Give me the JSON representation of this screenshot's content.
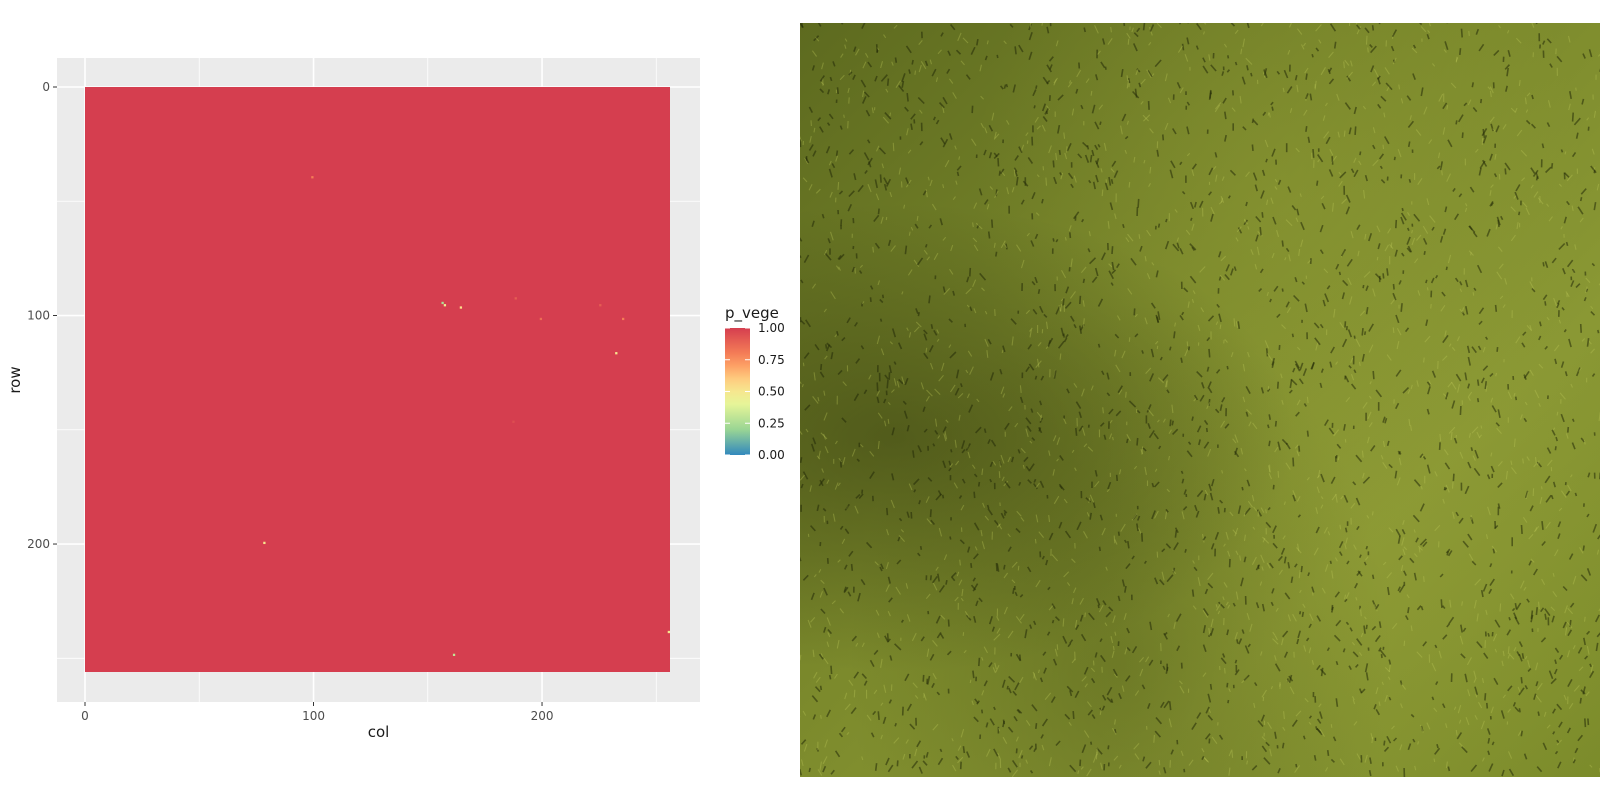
{
  "chart_data": {
    "type": "heatmap",
    "xlabel": "col",
    "ylabel": "row",
    "xlim": [
      0,
      256
    ],
    "ylim": [
      0,
      256
    ],
    "y_reversed": true,
    "x_ticks": [
      "0",
      "100",
      "200"
    ],
    "y_ticks": [
      "0",
      "100",
      "200"
    ],
    "fill_value": 1.0,
    "points": [
      {
        "col": 99,
        "row": 39,
        "value": 0.8
      },
      {
        "col": 156,
        "row": 94,
        "value": 0.25
      },
      {
        "col": 157,
        "row": 95,
        "value": 0.45
      },
      {
        "col": 164,
        "row": 96,
        "value": 0.55
      },
      {
        "col": 188,
        "row": 92,
        "value": 0.9
      },
      {
        "col": 199,
        "row": 101,
        "value": 0.85
      },
      {
        "col": 225,
        "row": 95,
        "value": 0.9
      },
      {
        "col": 235,
        "row": 101,
        "value": 0.8
      },
      {
        "col": 232,
        "row": 116,
        "value": 0.5
      },
      {
        "col": 187,
        "row": 146,
        "value": 0.95
      },
      {
        "col": 78,
        "row": 199,
        "value": 0.5
      },
      {
        "col": 161,
        "row": 248,
        "value": 0.3
      },
      {
        "col": 255,
        "row": 238,
        "value": 0.5
      }
    ],
    "legend": {
      "title": "p_vege",
      "labels": [
        "1.00",
        "0.75",
        "0.50",
        "0.25",
        "0.00"
      ],
      "values": [
        1.0,
        0.75,
        0.5,
        0.25,
        0.0
      ],
      "colors": [
        "#d53e4f",
        "#fc8d59",
        "#fee08b",
        "#e6f598",
        "#99d594",
        "#3288bd"
      ]
    },
    "panel_color": "#ebebeb",
    "grid_color": "#ffffff"
  },
  "photo": {
    "subject": "grass-aerial-photo"
  }
}
